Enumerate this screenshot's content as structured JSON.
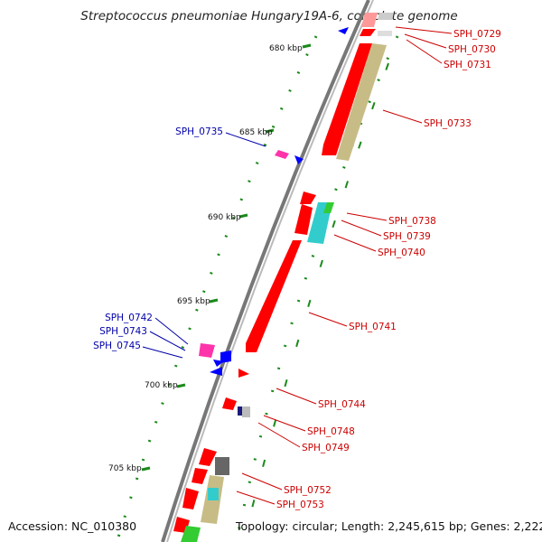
{
  "title": "Streptococcus pneumoniae Hungary19A-6, complete genome",
  "footer": {
    "accession": "Accession: NC_010380",
    "summary": "Topology: circular; Length: 2,245,615 bp; Genes: 2,222"
  },
  "ticks": [
    "680 kbp",
    "685 kbp",
    "690 kbp",
    "695 kbp",
    "700 kbp",
    "705 kbp"
  ],
  "colors": {
    "forward_label": "#cc0000",
    "reverse_label": "#0000aa",
    "backbone": "#888888"
  },
  "genes": {
    "forward": [
      "SPH_0729",
      "SPH_0730",
      "SPH_0731",
      "SPH_0733",
      "SPH_0738",
      "SPH_0739",
      "SPH_0740",
      "SPH_0741",
      "SPH_0744",
      "SPH_0748",
      "SPH_0749",
      "SPH_0752",
      "SPH_0753"
    ],
    "reverse": [
      "SPH_0735",
      "SPH_0742",
      "SPH_0743",
      "SPH_0745"
    ]
  }
}
